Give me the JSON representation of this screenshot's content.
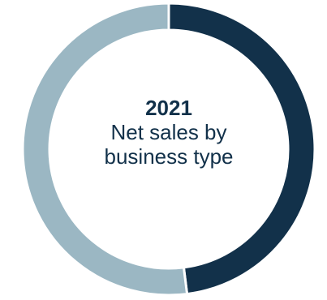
{
  "chart_data": {
    "type": "pie",
    "variant": "donut",
    "title": "2021",
    "subtitle_lines": [
      "Net sales by",
      "business type"
    ],
    "slices": [
      {
        "value": 48,
        "color": "#12314a"
      },
      {
        "value": 52,
        "color": "#9bb7c3"
      }
    ],
    "start": "top",
    "direction": "clockwise",
    "separator_color": "#ffffff"
  }
}
